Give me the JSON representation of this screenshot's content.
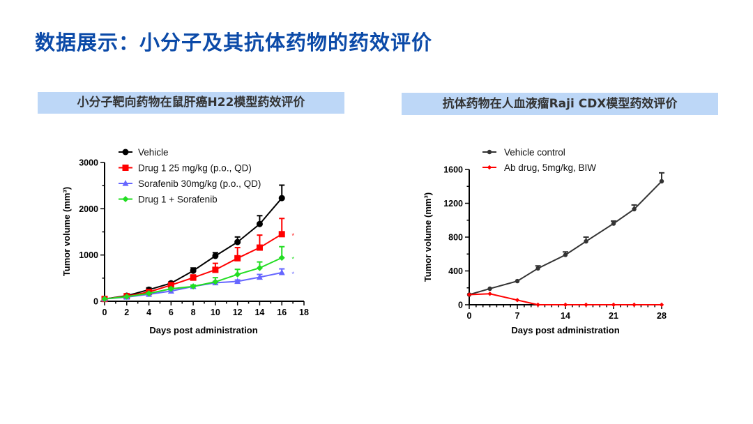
{
  "page": {
    "title": "数据展示：小分子及其抗体药物的药效评价",
    "left_banner": "小分子靶向药物在鼠肝癌H22模型药效评价",
    "right_banner": "抗体药物在人血液瘤Raji CDX模型药效评价"
  },
  "chart_data": [
    {
      "type": "line",
      "xlabel": "Days post administration",
      "ylabel": "Tumor volume (mm³)",
      "xlim": [
        0,
        18
      ],
      "ylim": [
        0,
        3000
      ],
      "xticks": [
        0,
        2,
        4,
        6,
        8,
        10,
        12,
        14,
        16,
        18
      ],
      "yticks": [
        0,
        1000,
        2000,
        3000
      ],
      "legend_position": "top",
      "x": [
        0,
        2,
        4,
        6,
        8,
        10,
        12,
        14,
        16
      ],
      "series": [
        {
          "name": "Vehicle",
          "color": "#000000",
          "marker": "circle",
          "values": [
            50,
            120,
            250,
            390,
            660,
            980,
            1280,
            1670,
            2230
          ],
          "error": [
            10,
            20,
            40,
            30,
            60,
            70,
            110,
            180,
            280
          ]
        },
        {
          "name": "Drug 1 25 mg/kg (p.o., QD)",
          "color": "#ff0000",
          "marker": "square",
          "values": [
            50,
            110,
            200,
            350,
            510,
            680,
            930,
            1160,
            1450
          ],
          "error": [
            10,
            15,
            30,
            40,
            60,
            140,
            230,
            270,
            340
          ]
        },
        {
          "name": "Sorafenib 30mg/kg (p.o., QD)",
          "color": "#6666ff",
          "marker": "triangle",
          "values": [
            50,
            90,
            150,
            220,
            320,
            400,
            430,
            520,
            620
          ],
          "error": [
            5,
            10,
            15,
            20,
            25,
            30,
            30,
            60,
            80
          ]
        },
        {
          "name": "Drug 1 + Sorafenib",
          "color": "#22dd22",
          "marker": "diamond",
          "values": [
            50,
            100,
            170,
            270,
            320,
            420,
            580,
            720,
            940
          ],
          "error": [
            5,
            10,
            15,
            20,
            30,
            90,
            110,
            130,
            240
          ]
        }
      ],
      "annotations": [
        {
          "text": "*",
          "x": 16.9,
          "y": 1450,
          "color": "#ff0000"
        },
        {
          "text": "*",
          "x": 16.9,
          "y": 940,
          "color": "#22dd22"
        },
        {
          "text": "*",
          "x": 16.9,
          "y": 620,
          "color": "#6666ff"
        }
      ]
    },
    {
      "type": "line",
      "xlabel": "Days post administration",
      "ylabel": "Tumor volume (mm³)",
      "xlim": [
        0,
        28
      ],
      "ylim": [
        0,
        1600
      ],
      "xticks": [
        0,
        7,
        14,
        21,
        28
      ],
      "yticks": [
        0,
        400,
        800,
        1200,
        1600
      ],
      "legend_position": "top",
      "x": [
        0,
        3,
        7,
        10,
        14,
        17,
        21,
        24,
        28
      ],
      "series": [
        {
          "name": "Vehicle control",
          "color": "#333333",
          "marker": "circle",
          "values": [
            120,
            190,
            280,
            430,
            590,
            750,
            960,
            1130,
            1460
          ],
          "error": [
            0,
            0,
            0,
            30,
            35,
            50,
            30,
            50,
            100
          ]
        },
        {
          "name": "Ab drug, 5mg/kg, BIW",
          "color": "#ff0000",
          "marker": "diamond",
          "values": [
            120,
            130,
            55,
            0,
            0,
            0,
            0,
            0,
            0
          ],
          "error": [
            0,
            0,
            0,
            0,
            0,
            0,
            0,
            0,
            0
          ]
        }
      ],
      "annotations": []
    }
  ]
}
